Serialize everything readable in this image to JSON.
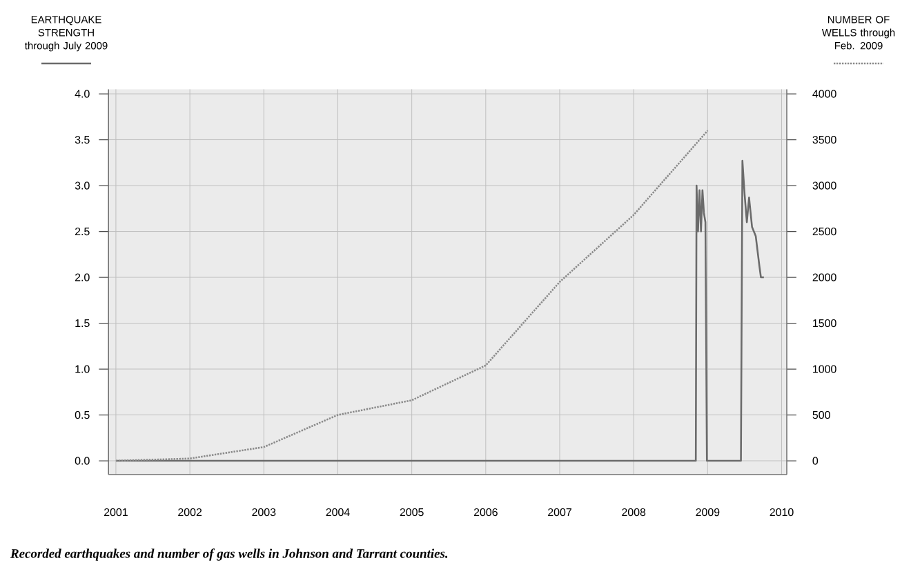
{
  "chart_data": {
    "type": "line",
    "ylabel": "EARTHQUAKE STRENGTH through July 2009",
    "y2label": "NUMBER OF WELLS through Feb. 2009",
    "annotations": [
      "**Recorded earthquakes and number of gas wells in Johnson and Tarrant counties.**"
    ],
    "series": [
      {
        "color": "#6b6b6b",
        "line_style": "solid",
        "x": [
          2001.0,
          2008.84,
          2008.85,
          2008.87,
          2008.89,
          2008.91,
          2008.93,
          2008.95,
          2008.97,
          2008.99,
          2009.45,
          2009.47,
          2009.5,
          2009.53,
          2009.56,
          2009.6,
          2009.65,
          2009.7,
          2009.72,
          2009.76
        ],
        "values": [
          0,
          0,
          3.0,
          2.5,
          2.95,
          2.5,
          2.95,
          2.7,
          2.6,
          0,
          0,
          3.27,
          2.9,
          2.6,
          2.87,
          2.55,
          2.45,
          2.12,
          2.0,
          2.0
        ]
      },
      {
        "color": "#8a8a8a",
        "line_style": "dotted",
        "axis": "y2",
        "x": [
          2001,
          2002,
          2003,
          2004,
          2005,
          2006,
          2007,
          2008,
          2009
        ],
        "values": [
          0,
          25,
          150,
          500,
          660,
          1040,
          1950,
          2680,
          3600
        ]
      }
    ],
    "xlim": [
      2000.9,
      2010.07
    ],
    "xticks": [
      2001,
      2002,
      2003,
      2004,
      2005,
      2006,
      2007,
      2008,
      2009,
      2010
    ],
    "ylim": [
      -0.15,
      4.05
    ],
    "yticks": [
      {
        "value": 0,
        "label": "0.0"
      },
      {
        "value": 0.5,
        "label": "0.5"
      },
      {
        "value": 1,
        "label": "1.0"
      },
      {
        "value": 1.5,
        "label": "1.5"
      },
      {
        "value": 2,
        "label": "2.0"
      },
      {
        "value": 2.5,
        "label": "2.5"
      },
      {
        "value": 3,
        "label": "3.0"
      },
      {
        "value": 3.5,
        "label": "3.5"
      },
      {
        "value": 4,
        "label": "4.0"
      }
    ],
    "y2lim": [
      -150,
      4050
    ],
    "y2ticks": [
      0,
      500,
      1000,
      1500,
      2000,
      2500,
      3000,
      3500,
      4000
    ],
    "grid": true
  }
}
